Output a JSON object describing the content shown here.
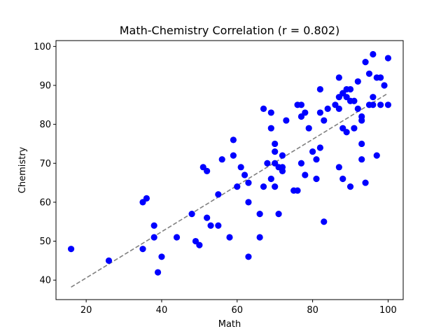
{
  "chart_data": {
    "type": "scatter",
    "title": "Math-Chemistry Correlation (r = 0.802)",
    "xlabel": "Math",
    "ylabel": "Chemistry",
    "xlim": [
      12,
      104
    ],
    "ylim": [
      35,
      101.5
    ],
    "xticks": [
      20,
      40,
      60,
      80,
      100
    ],
    "yticks": [
      40,
      50,
      60,
      70,
      80,
      90,
      100
    ],
    "grid": false,
    "point_color": "#0000ff",
    "trend_color": "#808080",
    "trendline": {
      "x": [
        16,
        100
      ],
      "y": [
        38.2,
        88.0
      ],
      "style": "dashed"
    },
    "points": [
      [
        16,
        48
      ],
      [
        26,
        45
      ],
      [
        35,
        60
      ],
      [
        35,
        48
      ],
      [
        36,
        61
      ],
      [
        38,
        54
      ],
      [
        38,
        51
      ],
      [
        39,
        42
      ],
      [
        40,
        46
      ],
      [
        44,
        51
      ],
      [
        48,
        57
      ],
      [
        49,
        50
      ],
      [
        50,
        49
      ],
      [
        51,
        69
      ],
      [
        52,
        68
      ],
      [
        52,
        56
      ],
      [
        53,
        54
      ],
      [
        55,
        62
      ],
      [
        55,
        54
      ],
      [
        56,
        71
      ],
      [
        58,
        51
      ],
      [
        59,
        72
      ],
      [
        59,
        76
      ],
      [
        60,
        64
      ],
      [
        61,
        69
      ],
      [
        62,
        67
      ],
      [
        63,
        65
      ],
      [
        63,
        60
      ],
      [
        63,
        46
      ],
      [
        66,
        57
      ],
      [
        66,
        51
      ],
      [
        67,
        84
      ],
      [
        67,
        64
      ],
      [
        68,
        70
      ],
      [
        69,
        83
      ],
      [
        69,
        79
      ],
      [
        69,
        66
      ],
      [
        70,
        75
      ],
      [
        70,
        73
      ],
      [
        70,
        70
      ],
      [
        70,
        64
      ],
      [
        71,
        69
      ],
      [
        71,
        57
      ],
      [
        72,
        72
      ],
      [
        72,
        69
      ],
      [
        72,
        68
      ],
      [
        73,
        81
      ],
      [
        75,
        63
      ],
      [
        76,
        85
      ],
      [
        76,
        63
      ],
      [
        77,
        85
      ],
      [
        77,
        82
      ],
      [
        77,
        70
      ],
      [
        78,
        83
      ],
      [
        78,
        67
      ],
      [
        79,
        79
      ],
      [
        80,
        73
      ],
      [
        81,
        71
      ],
      [
        81,
        66
      ],
      [
        82,
        89
      ],
      [
        82,
        83
      ],
      [
        82,
        74
      ],
      [
        83,
        81
      ],
      [
        83,
        55
      ],
      [
        84,
        84
      ],
      [
        86,
        85
      ],
      [
        87,
        92
      ],
      [
        87,
        87
      ],
      [
        87,
        84
      ],
      [
        87,
        69
      ],
      [
        88,
        88
      ],
      [
        88,
        79
      ],
      [
        88,
        66
      ],
      [
        89,
        89
      ],
      [
        89,
        87
      ],
      [
        89,
        78
      ],
      [
        90,
        89
      ],
      [
        90,
        86
      ],
      [
        90,
        64
      ],
      [
        91,
        86
      ],
      [
        91,
        79
      ],
      [
        92,
        91
      ],
      [
        92,
        84
      ],
      [
        93,
        82
      ],
      [
        93,
        81
      ],
      [
        93,
        75
      ],
      [
        93,
        71
      ],
      [
        94,
        96
      ],
      [
        94,
        65
      ],
      [
        95,
        93
      ],
      [
        95,
        85
      ],
      [
        96,
        98
      ],
      [
        96,
        87
      ],
      [
        96,
        85
      ],
      [
        97,
        92
      ],
      [
        97,
        72
      ],
      [
        98,
        92
      ],
      [
        98,
        85
      ],
      [
        99,
        90
      ],
      [
        100,
        97
      ],
      [
        100,
        85
      ]
    ]
  }
}
